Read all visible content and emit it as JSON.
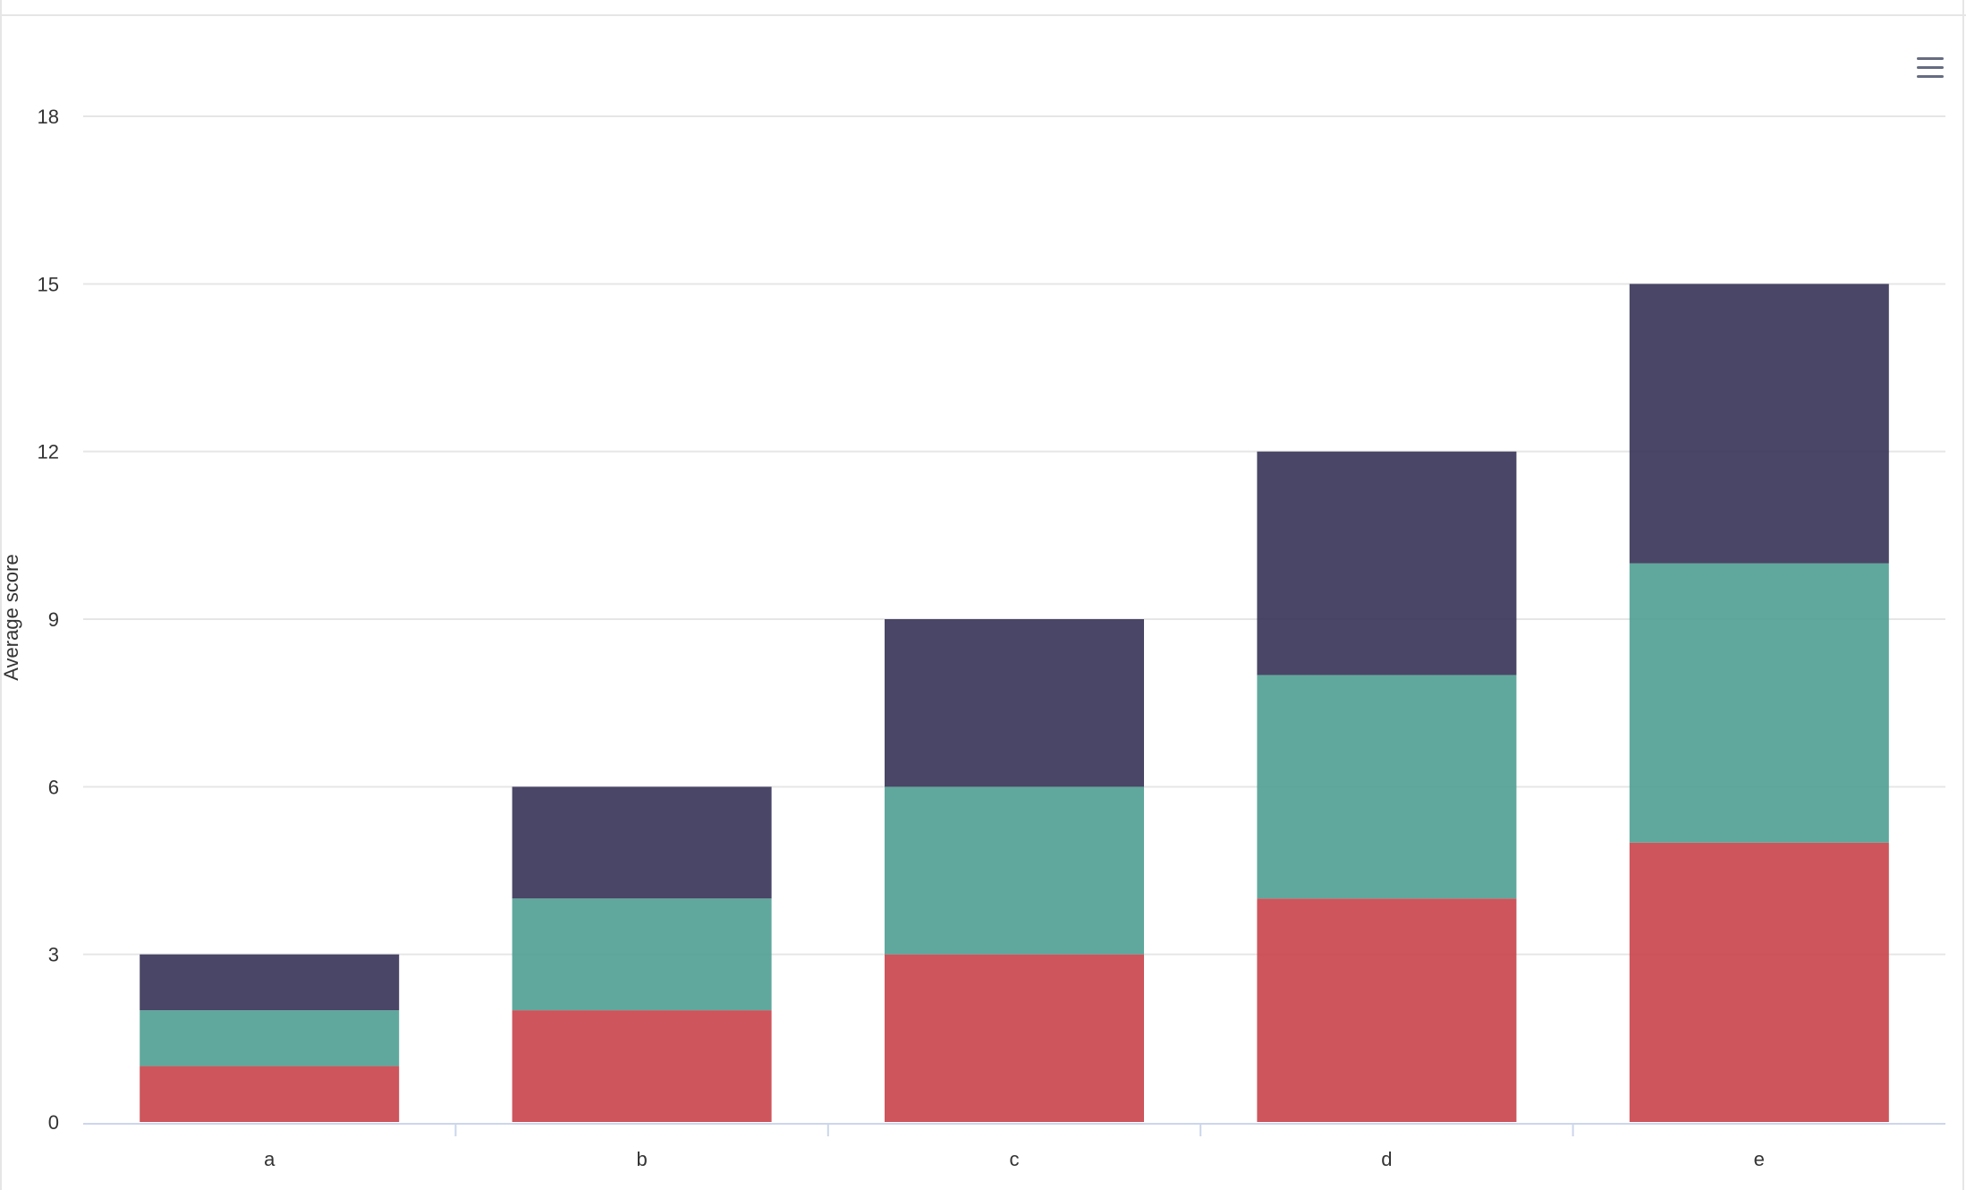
{
  "toolbar": {
    "menu_icon": "hamburger-menu-icon"
  },
  "colors": {
    "background": "#ffffff",
    "grid": "#e6e6e6",
    "axis_line": "#ccd6eb",
    "tick_text": "#333333",
    "series": [
      "#c9434a",
      "#4f9e92",
      "#363256"
    ]
  },
  "chart_data": {
    "type": "bar",
    "stacked": true,
    "title": "",
    "xlabel": "",
    "ylabel": "Average score",
    "categories": [
      "a",
      "b",
      "c",
      "d",
      "e"
    ],
    "series": [
      {
        "values": [
          1,
          2,
          3,
          4,
          5
        ],
        "color": "#c9434a"
      },
      {
        "values": [
          1,
          2,
          3,
          4,
          5
        ],
        "color": "#4f9e92"
      },
      {
        "values": [
          1,
          2,
          3,
          4,
          5
        ],
        "color": "#363256"
      }
    ],
    "ylim": [
      0,
      18
    ],
    "yticks": [
      0,
      3,
      6,
      9,
      12,
      15,
      18
    ],
    "grid": true,
    "legend": "none"
  }
}
